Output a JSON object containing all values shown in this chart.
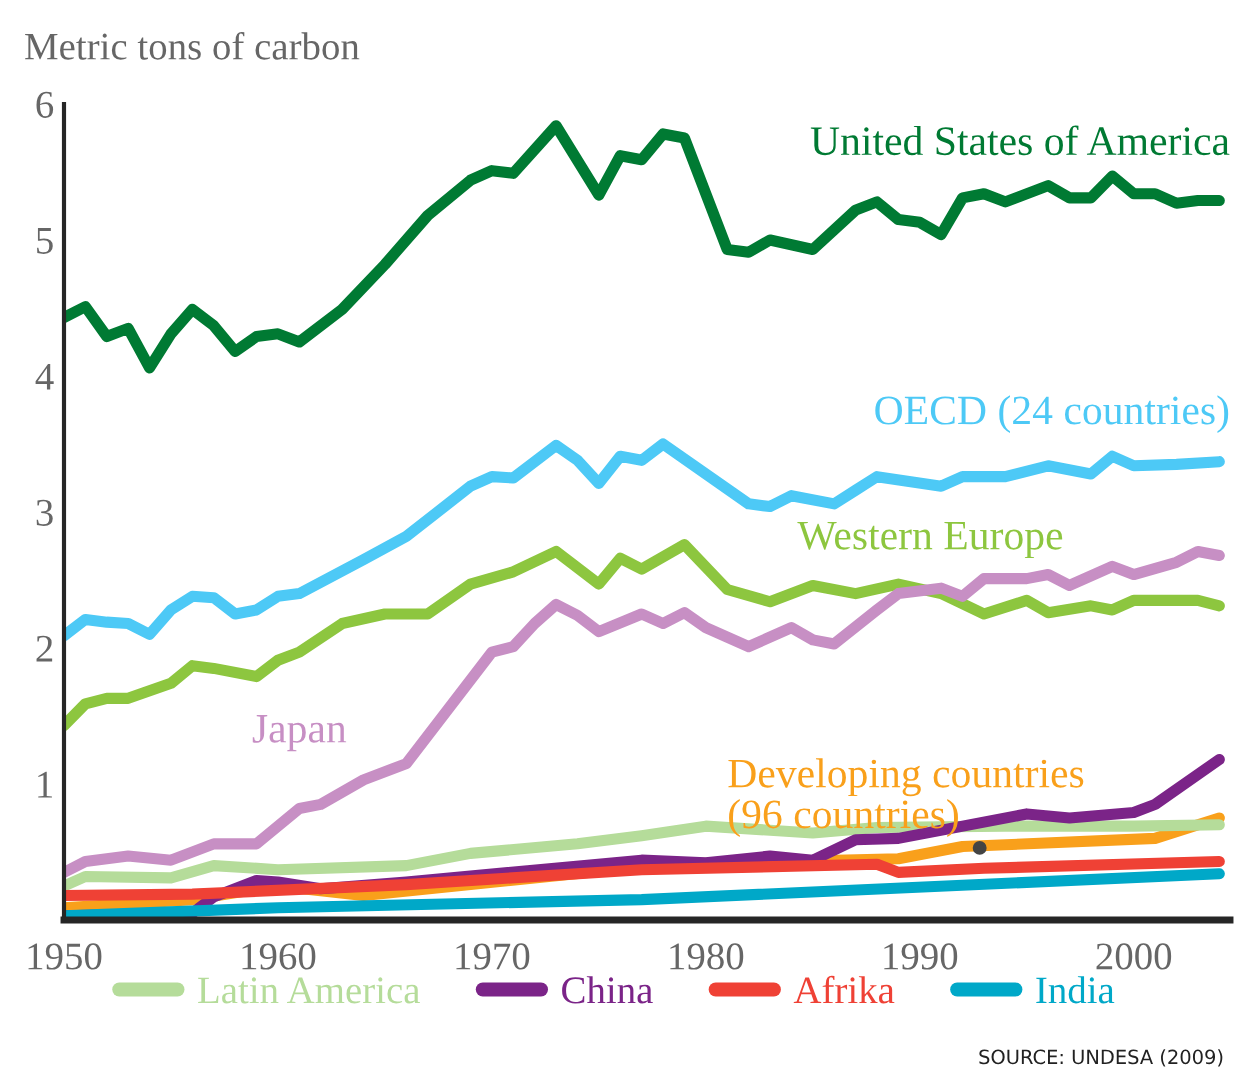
{
  "chart_data": {
    "type": "line",
    "ylabel": "Metric tons of carbon",
    "xlim": [
      1950,
      2004.5
    ],
    "xticks": [
      1950,
      1960,
      1970,
      1980,
      1990,
      2000
    ],
    "ylim": [
      0,
      6
    ],
    "yticks": [
      1,
      2,
      3,
      4,
      5,
      6
    ],
    "grid": false,
    "legend": "bottom",
    "marker": "none",
    "line_style": "solid",
    "annotations": [
      "SOURCE: UNDESA (2009)"
    ],
    "series": [
      {
        "name": "United States of America",
        "color": "#007a33",
        "x": [
          1950,
          1951,
          1952,
          1953,
          1954,
          1955,
          1956,
          1957,
          1958,
          1959,
          1960,
          1961,
          1963,
          1965,
          1967,
          1969,
          1970,
          1971,
          1973,
          1975,
          1976,
          1977,
          1978,
          1979,
          1981,
          1982,
          1983,
          1985,
          1987,
          1988,
          1989,
          1990,
          1991,
          1992,
          1993,
          1994,
          1996,
          1997,
          1998,
          1999,
          2000,
          2001,
          2002,
          2003,
          2004
        ],
        "values": [
          4.43,
          4.51,
          4.29,
          4.35,
          4.06,
          4.31,
          4.49,
          4.37,
          4.18,
          4.29,
          4.31,
          4.25,
          4.49,
          4.82,
          5.18,
          5.44,
          5.51,
          5.49,
          5.84,
          5.33,
          5.62,
          5.59,
          5.78,
          5.75,
          4.93,
          4.91,
          5.0,
          4.93,
          5.22,
          5.28,
          5.15,
          5.13,
          5.04,
          5.31,
          5.34,
          5.28,
          5.4,
          5.31,
          5.31,
          5.47,
          5.34,
          5.34,
          5.27,
          5.29,
          5.29
        ]
      },
      {
        "name": "OECD (24 countries)",
        "color": "#4dc9f6",
        "x": [
          1950,
          1951,
          1952,
          1953,
          1954,
          1955,
          1956,
          1957,
          1958,
          1959,
          1960,
          1961,
          1964,
          1966,
          1969,
          1970,
          1971,
          1973,
          1974,
          1975,
          1976,
          1977,
          1978,
          1982,
          1983,
          1984,
          1986,
          1987,
          1988,
          1991,
          1992,
          1994,
          1996,
          1998,
          1999,
          2000,
          2002,
          2004
        ],
        "values": [
          2.09,
          2.21,
          2.19,
          2.18,
          2.1,
          2.28,
          2.38,
          2.37,
          2.25,
          2.28,
          2.38,
          2.4,
          2.65,
          2.82,
          3.19,
          3.26,
          3.25,
          3.49,
          3.38,
          3.21,
          3.41,
          3.38,
          3.5,
          3.06,
          3.04,
          3.12,
          3.06,
          3.16,
          3.26,
          3.19,
          3.26,
          3.26,
          3.34,
          3.28,
          3.41,
          3.34,
          3.35,
          3.37
        ]
      },
      {
        "name": "Western Europe",
        "color": "#8dc63f",
        "x": [
          1950,
          1951,
          1952,
          1953,
          1955,
          1956,
          1957,
          1959,
          1960,
          1961,
          1963,
          1965,
          1967,
          1969,
          1971,
          1973,
          1975,
          1976,
          1977,
          1979,
          1981,
          1983,
          1985,
          1987,
          1989,
          1991,
          1993,
          1995,
          1996,
          1998,
          1999,
          2000,
          2003,
          2004
        ],
        "values": [
          1.43,
          1.59,
          1.63,
          1.63,
          1.74,
          1.87,
          1.85,
          1.79,
          1.91,
          1.97,
          2.18,
          2.25,
          2.25,
          2.47,
          2.56,
          2.71,
          2.47,
          2.66,
          2.58,
          2.76,
          2.43,
          2.34,
          2.46,
          2.4,
          2.47,
          2.4,
          2.25,
          2.35,
          2.26,
          2.31,
          2.28,
          2.35,
          2.35,
          2.31
        ]
      },
      {
        "name": "Japan",
        "color": "#c78fc4",
        "x": [
          1950,
          1951,
          1953,
          1955,
          1957,
          1959,
          1961,
          1962,
          1964,
          1966,
          1970,
          1971,
          1972,
          1973,
          1974,
          1975,
          1977,
          1978,
          1979,
          1980,
          1982,
          1984,
          1985,
          1986,
          1988,
          1989,
          1991,
          1992,
          1993,
          1995,
          1996,
          1997,
          1999,
          2000,
          2002,
          2003,
          2004
        ],
        "values": [
          0.35,
          0.43,
          0.47,
          0.44,
          0.56,
          0.56,
          0.82,
          0.85,
          1.03,
          1.15,
          1.97,
          2.01,
          2.18,
          2.32,
          2.24,
          2.12,
          2.25,
          2.18,
          2.26,
          2.15,
          2.01,
          2.15,
          2.06,
          2.03,
          2.28,
          2.4,
          2.44,
          2.38,
          2.51,
          2.51,
          2.54,
          2.46,
          2.6,
          2.54,
          2.63,
          2.71,
          2.68
        ]
      },
      {
        "name": "Developing countries\n(96 countries)",
        "color": "#f9a01b",
        "x": [
          1950,
          1956,
          1960,
          1964,
          1977,
          1978,
          1989,
          1992,
          2001,
          2004
        ],
        "values": [
          0.09,
          0.15,
          0.25,
          0.18,
          0.39,
          0.41,
          0.45,
          0.54,
          0.6,
          0.75
        ]
      },
      {
        "name": "Latin America",
        "color": "#b5dc9a",
        "x": [
          1950,
          1951,
          1955,
          1957,
          1960,
          1966,
          1969,
          1974,
          1977,
          1980,
          1985,
          1988,
          1994,
          2000,
          2004
        ],
        "values": [
          0.25,
          0.32,
          0.31,
          0.4,
          0.37,
          0.4,
          0.49,
          0.56,
          0.62,
          0.69,
          0.64,
          0.68,
          0.69,
          0.69,
          0.7
        ]
      },
      {
        "name": "China",
        "color": "#7b2488",
        "x": [
          1950,
          1956,
          1957,
          1959,
          1960,
          1962,
          1966,
          1977,
          1980,
          1983,
          1985,
          1987,
          1989,
          1995,
          1997,
          2000,
          2001,
          2004
        ],
        "values": [
          0.03,
          0.05,
          0.17,
          0.29,
          0.28,
          0.23,
          0.28,
          0.44,
          0.42,
          0.47,
          0.44,
          0.59,
          0.6,
          0.78,
          0.75,
          0.79,
          0.85,
          1.18
        ]
      },
      {
        "name": "Afrika",
        "color": "#ef4135",
        "x": [
          1950,
          1956,
          1966,
          1977,
          1988,
          1989,
          1993,
          2004
        ],
        "values": [
          0.18,
          0.19,
          0.26,
          0.37,
          0.41,
          0.35,
          0.38,
          0.43
        ]
      },
      {
        "name": "India",
        "color": "#00a8c8",
        "x": [
          1950,
          1960,
          1977,
          2004
        ],
        "values": [
          0.03,
          0.09,
          0.15,
          0.34
        ]
      }
    ]
  }
}
